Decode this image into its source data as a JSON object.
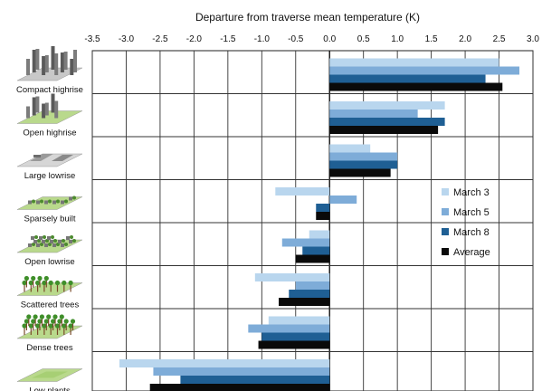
{
  "chart_data": {
    "type": "bar",
    "orientation": "horizontal",
    "title": "",
    "xlabel": "Departure from traverse mean temperature (K)",
    "ylabel": "",
    "xlim": [
      -3.5,
      3.0
    ],
    "xticks": [
      "-3.5",
      "-3.0",
      "-2.5",
      "-2.0",
      "-1.5",
      "-1.0",
      "-0.5",
      "0.0",
      "0.5",
      "1.0",
      "1.5",
      "2.0",
      "2.5",
      "3.0"
    ],
    "x_axis_position": "top",
    "grid": true,
    "legend_position": "right",
    "categories": [
      "Compact highrise",
      "Open highrise",
      "Large lowrise",
      "Sparsely built",
      "Open lowrise",
      "Scattered trees",
      "Dense trees",
      "Low plants"
    ],
    "series": [
      {
        "name": "March 3",
        "color": "#b9d6ee",
        "values": [
          2.5,
          1.7,
          0.6,
          -0.8,
          -0.3,
          -1.1,
          -0.9,
          -3.1
        ]
      },
      {
        "name": "March 5",
        "color": "#7eacd8",
        "values": [
          2.8,
          1.3,
          1.0,
          0.4,
          -0.7,
          -0.5,
          -1.2,
          -2.6
        ]
      },
      {
        "name": "March 8",
        "color": "#1f5f94",
        "values": [
          2.3,
          1.7,
          1.0,
          -0.2,
          -0.4,
          -0.6,
          -1.0,
          -2.2
        ]
      },
      {
        "name": "Average",
        "color": "#0a0a0a",
        "values": [
          2.55,
          1.6,
          0.9,
          -0.2,
          -0.5,
          -0.75,
          -1.05,
          -2.65
        ]
      }
    ]
  },
  "icons": [
    "compact-highrise-icon",
    "open-highrise-icon",
    "large-lowrise-icon",
    "sparsely-built-icon",
    "open-lowrise-icon",
    "scattered-trees-icon",
    "dense-trees-icon",
    "low-plants-icon"
  ]
}
